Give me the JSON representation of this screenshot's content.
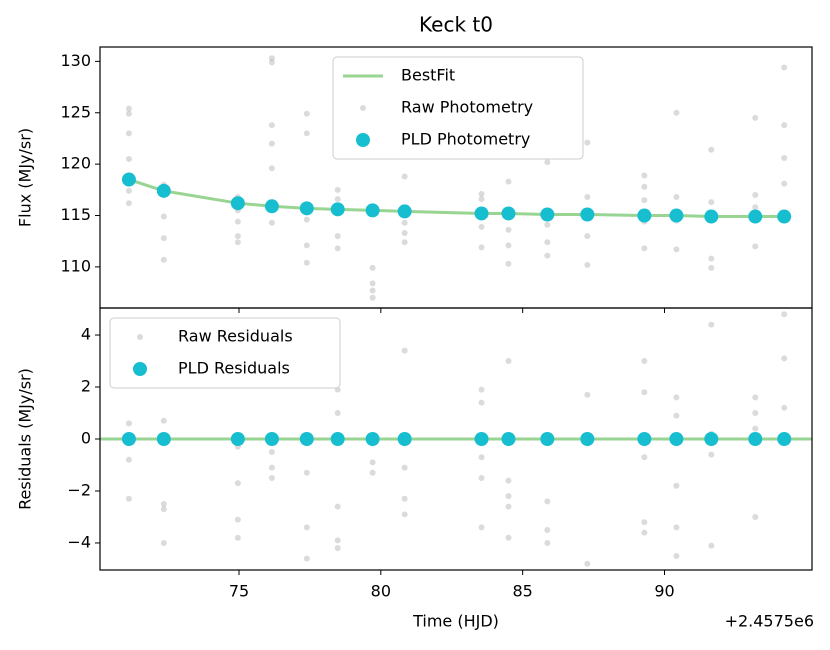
{
  "chart_data": [
    {
      "type": "scatter",
      "title": "Keck t0",
      "ylabel": "Flux (MJy/sr)",
      "xlim": [
        70.1,
        95.2
      ],
      "xticks": [
        75,
        80,
        85,
        90
      ],
      "ylim": [
        106,
        131.4
      ],
      "yticks": [
        110,
        115,
        120,
        125,
        130
      ],
      "legend": "upper center",
      "series": [
        {
          "name": "BestFit",
          "style": "line",
          "color": "#98d593",
          "x": [
            71.12,
            72.35,
            74.96,
            76.16,
            77.39,
            78.48,
            79.71,
            80.84,
            83.55,
            84.5,
            85.87,
            87.28,
            89.29,
            90.42,
            91.65,
            93.2,
            94.22
          ],
          "values": [
            118.5,
            117.4,
            116.2,
            115.9,
            115.7,
            115.6,
            115.5,
            115.4,
            115.2,
            115.2,
            115.1,
            115.1,
            115.0,
            115.0,
            114.9,
            114.9,
            114.9
          ]
        },
        {
          "name": "Raw Photometry",
          "style": "small",
          "color": "#999999",
          "x": [
            71.12,
            71.12,
            71.12,
            71.12,
            71.12,
            71.12,
            72.35,
            72.35,
            72.35,
            72.35,
            72.35,
            74.96,
            74.96,
            74.96,
            74.96,
            74.96,
            76.16,
            76.16,
            76.16,
            76.16,
            76.16,
            76.16,
            77.39,
            77.39,
            77.39,
            77.39,
            77.39,
            78.48,
            78.48,
            78.48,
            78.48,
            79.71,
            79.71,
            79.71,
            79.71,
            80.84,
            80.84,
            80.84,
            80.84,
            83.55,
            83.55,
            83.55,
            83.55,
            84.5,
            84.5,
            84.5,
            84.5,
            85.87,
            85.87,
            85.87,
            85.87,
            87.28,
            87.28,
            87.28,
            87.28,
            89.29,
            89.29,
            89.29,
            89.29,
            89.29,
            90.42,
            90.42,
            90.42,
            90.42,
            91.65,
            91.65,
            91.65,
            91.65,
            93.2,
            93.2,
            93.2,
            93.2,
            94.22,
            94.22,
            94.22,
            94.22
          ],
          "values": [
            125.4,
            124.9,
            123,
            120.5,
            117.4,
            116.2,
            118,
            117.6,
            114.9,
            112.8,
            110.7,
            116.8,
            115.5,
            114.4,
            113,
            112.4,
            130.3,
            129.9,
            123.8,
            122,
            119.6,
            114.3,
            124.9,
            123,
            114.6,
            112.1,
            110.4,
            117.5,
            116.6,
            113,
            111.8,
            109.9,
            108.4,
            107.7,
            107,
            118.8,
            114.3,
            113.3,
            112.4,
            117.1,
            116.6,
            113.9,
            111.9,
            118.3,
            113.6,
            112.1,
            110.3,
            120.2,
            114.1,
            112.4,
            111.1,
            122.1,
            116.8,
            113,
            110.2,
            118.9,
            117.8,
            116.5,
            114.4,
            111.8,
            125,
            116.8,
            114.5,
            111.7,
            121.4,
            116.3,
            110.8,
            109.9,
            124.5,
            117,
            115.8,
            112,
            129.4,
            123.8,
            120.6,
            118.1
          ]
        },
        {
          "name": "PLD Photometry",
          "style": "large",
          "color": "#17becf",
          "x": [
            71.12,
            72.35,
            74.96,
            76.16,
            77.39,
            78.48,
            79.71,
            80.84,
            83.55,
            84.5,
            85.87,
            87.28,
            89.29,
            90.42,
            91.65,
            93.2,
            94.22
          ],
          "values": [
            118.5,
            117.4,
            116.2,
            115.9,
            115.7,
            115.6,
            115.5,
            115.4,
            115.2,
            115.2,
            115.1,
            115.1,
            115.0,
            115.0,
            114.9,
            114.9,
            114.9
          ]
        }
      ]
    },
    {
      "type": "scatter",
      "ylabel": "Residuals (MJy/sr)",
      "xlabel": "Time (HJD)",
      "x_offset_label": "+2.4575e6",
      "xlim": [
        70.1,
        95.2
      ],
      "xticks": [
        75,
        80,
        85,
        90
      ],
      "ylim": [
        -5.04,
        5.04
      ],
      "yticks": [
        {
          "value": -4,
          "label": "−4"
        },
        {
          "value": -2,
          "label": "−2"
        },
        0,
        2,
        4
      ],
      "legend": "upper left",
      "series": [
        {
          "style": "line",
          "color": "#98d593",
          "x": [
            70.1,
            95.2
          ],
          "values": [
            0,
            0
          ]
        },
        {
          "name": "Raw Residuals",
          "style": "small",
          "color": "#999999",
          "x": [
            71.12,
            71.12,
            71.12,
            72.35,
            72.35,
            72.35,
            72.35,
            74.96,
            74.96,
            74.96,
            74.96,
            76.16,
            76.16,
            76.16,
            77.39,
            77.39,
            77.39,
            78.48,
            78.48,
            78.48,
            78.48,
            78.48,
            79.71,
            79.71,
            80.84,
            80.84,
            80.84,
            80.84,
            83.55,
            83.55,
            83.55,
            83.55,
            83.55,
            84.5,
            84.5,
            84.5,
            84.5,
            84.5,
            85.87,
            85.87,
            85.87,
            87.28,
            87.28,
            89.29,
            89.29,
            89.29,
            89.29,
            89.29,
            90.42,
            90.42,
            90.42,
            90.42,
            90.42,
            91.65,
            91.65,
            91.65,
            91.65,
            93.2,
            93.2,
            93.2,
            93.2,
            94.22,
            94.22,
            94.22
          ],
          "values": [
            0.6,
            -0.8,
            -2.3,
            0.7,
            -2.5,
            -2.7,
            -4,
            -0.3,
            -1.7,
            -3.1,
            -3.8,
            -0.5,
            -1.1,
            -1.5,
            -1.3,
            -3.4,
            -4.6,
            1.9,
            1.0,
            -2.6,
            -3.9,
            -4.2,
            -1.3,
            -0.9,
            3.4,
            -1.1,
            -2.3,
            -2.9,
            1.9,
            1.4,
            -0.7,
            -1.5,
            -3.4,
            3.0,
            -1.6,
            -2.2,
            -2.6,
            -3.8,
            -2.4,
            -3.5,
            -4.0,
            1.7,
            -4.8,
            3.0,
            1.8,
            -0.7,
            -3.2,
            -3.6,
            1.6,
            0.9,
            -1.8,
            -3.4,
            -4.5,
            4.4,
            0.2,
            -0.6,
            -4.1,
            1.6,
            1.0,
            0.4,
            -3.0,
            4.8,
            3.1,
            1.2
          ]
        },
        {
          "name": "PLD Residuals",
          "style": "large",
          "color": "#17becf",
          "x": [
            71.12,
            72.35,
            74.96,
            76.16,
            77.39,
            78.48,
            79.71,
            80.84,
            83.55,
            84.5,
            85.87,
            87.28,
            89.29,
            90.42,
            91.65,
            93.2,
            94.22
          ],
          "values": [
            0,
            0,
            0,
            0,
            0,
            0,
            0,
            0,
            0,
            0,
            0,
            0,
            0,
            0,
            0,
            0,
            0
          ]
        }
      ]
    }
  ]
}
